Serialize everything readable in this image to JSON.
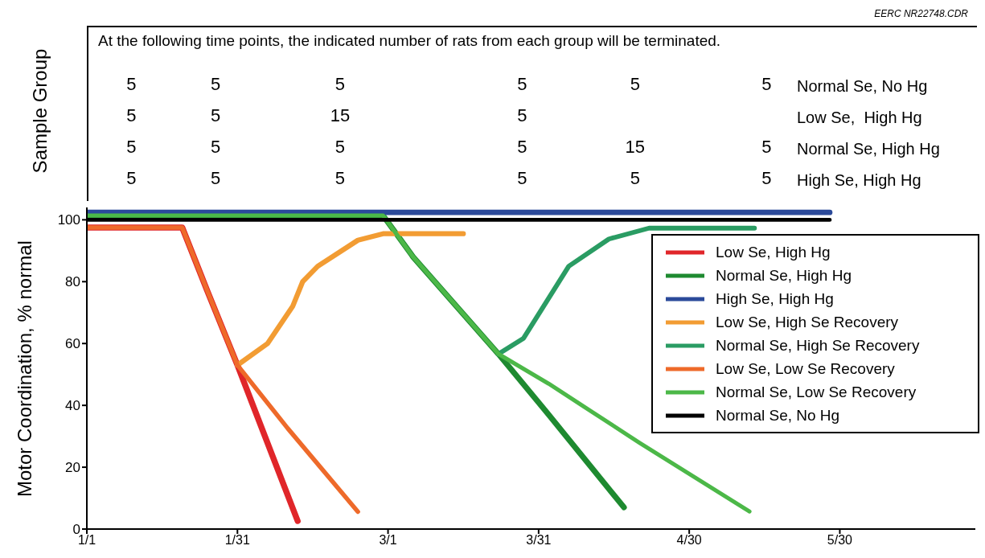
{
  "chart_data": [
    {
      "type": "other",
      "title": "At the following time points, the indicated number of rats from each group will be terminated.",
      "ylabel": "Sample Group",
      "annotations": [
        "EERC NR22748.CDR",
        "5",
        "5",
        "5",
        "5",
        "5",
        "5",
        "Normal Se, No Hg",
        "5",
        "5",
        "15",
        "5",
        "Low Se,  High Hg",
        "5",
        "5",
        "5",
        "5",
        "15",
        "5",
        "Normal Se, High Hg",
        "5",
        "5",
        "5",
        "5",
        "5",
        "5",
        "High Se, High Hg"
      ]
    },
    {
      "type": "line",
      "ylabel": "Motor Coordination, % normal",
      "xlim": [
        "--01-01",
        "--06-26"
      ],
      "xticks": [
        {
          "value": "--01-01",
          "label": "1/1"
        },
        {
          "value": "--01-31",
          "label": "1/31"
        },
        {
          "value": "--03-01",
          "label": "3/1"
        },
        {
          "value": "--03-31",
          "label": "3/31"
        },
        {
          "value": "--04-30",
          "label": "4/30"
        },
        {
          "value": "--05-30",
          "label": "5/30"
        }
      ],
      "ylim": [
        0,
        104
      ],
      "yticks": [
        0,
        20,
        40,
        60,
        80,
        100
      ],
      "legend": "right",
      "marker": "none",
      "line_style": "solid",
      "series": [
        {
          "name": "Low Se, High Hg",
          "color": "#e0262a",
          "x": [
            "--01-01",
            "--01-20",
            "--01-25",
            "--01-31",
            "--02-12"
          ],
          "values": [
            97.5,
            97.5,
            77,
            53,
            2.6
          ]
        },
        {
          "name": "Normal Se, High Hg",
          "color": "#1e8a30",
          "x": [
            "--01-01",
            "--02-29",
            "--03-06",
            "--03-23",
            "--04-02",
            "--04-17"
          ],
          "values": [
            101.4,
            101.4,
            88,
            56.6,
            37,
            7
          ]
        },
        {
          "name": "High Se, High Hg",
          "color": "#2b4a9a",
          "x": [
            "--01-01",
            "--05-28"
          ],
          "values": [
            102.4,
            102.4
          ]
        },
        {
          "name": "Low Se, High Se Recovery",
          "color": "#f29c33",
          "x": [
            "--01-31",
            "--02-06",
            "--02-11",
            "--02-13",
            "--02-16",
            "--02-24",
            "--02-29",
            "--03-16"
          ],
          "values": [
            53,
            60,
            72,
            80,
            85,
            93.4,
            95.5,
            95.5
          ]
        },
        {
          "name": "Normal Se, High Se Recovery",
          "color": "#2a9c63",
          "x": [
            "--03-23",
            "--03-28",
            "--04-06",
            "--04-14",
            "--04-22",
            "--05-13"
          ],
          "values": [
            56.6,
            61.7,
            85,
            93.8,
            97.3,
            97.3
          ]
        },
        {
          "name": "Low Se, Low Se Recovery",
          "color": "#ee6a2a",
          "x": [
            "--01-01",
            "--01-20",
            "--01-25",
            "--01-31",
            "--02-10",
            "--02-24"
          ],
          "values": [
            97.5,
            97.5,
            77,
            53,
            32.6,
            5.6
          ]
        },
        {
          "name": "Normal Se, Low Se Recovery",
          "color": "#4cb848",
          "x": [
            "--01-01",
            "--02-29",
            "--03-06",
            "--03-23",
            "--04-02",
            "--04-20",
            "--05-12"
          ],
          "values": [
            101.4,
            101.4,
            88,
            56.6,
            47,
            28,
            5.7
          ]
        },
        {
          "name": "Normal Se, No Hg",
          "color": "#000000",
          "x": [
            "--01-01",
            "--05-28"
          ],
          "values": [
            100,
            100
          ]
        }
      ]
    }
  ]
}
